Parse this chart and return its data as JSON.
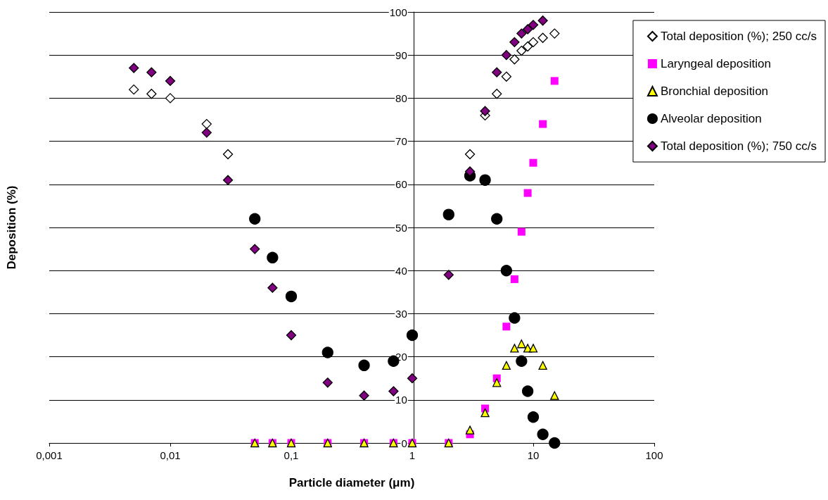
{
  "chart_data": {
    "type": "scatter",
    "xlabel": "Particle diameter (μm)",
    "ylabel": "Deposition (%)",
    "log": "x",
    "grid": "y",
    "legend": "top right",
    "xlim": [
      0.001,
      100
    ],
    "xticks": [
      {
        "value": 0.001,
        "label": "0,001"
      },
      {
        "value": 0.01,
        "label": "0,01"
      },
      {
        "value": 0.1,
        "label": "0,1"
      },
      1,
      10,
      100
    ],
    "ylim": [
      0,
      100
    ],
    "yticks": [
      0,
      10,
      20,
      30,
      40,
      50,
      60,
      70,
      80,
      90,
      100
    ],
    "series": [
      {
        "name": "Total deposition (%); 250 cc/s",
        "color": "#ffffff",
        "marker": "diamond",
        "x": [
          0.005,
          0.007,
          0.01,
          0.02,
          0.03,
          3,
          4,
          5,
          6,
          7,
          8,
          9,
          10,
          12,
          15
        ],
        "values": [
          82,
          81,
          80,
          74,
          67,
          67,
          76,
          81,
          85,
          89,
          91,
          92,
          93,
          94,
          95
        ]
      },
      {
        "name": "Laryngeal deposition",
        "color": "#ff00ff",
        "marker": "square",
        "x": [
          0.05,
          0.07,
          0.1,
          0.2,
          0.4,
          0.7,
          1,
          2,
          3,
          4,
          5,
          6,
          7,
          8,
          9,
          10,
          12,
          15
        ],
        "values": [
          0,
          0,
          0,
          0,
          0,
          0,
          0,
          0,
          2,
          8,
          15,
          27,
          38,
          49,
          58,
          65,
          74,
          84
        ]
      },
      {
        "name": "Bronchial deposition",
        "color": "#ffff00",
        "marker": "triangle",
        "x": [
          0.05,
          0.07,
          0.1,
          0.2,
          0.4,
          0.7,
          1,
          2,
          3,
          4,
          5,
          6,
          7,
          8,
          9,
          10,
          12,
          15
        ],
        "values": [
          0,
          0,
          0,
          0,
          0,
          0,
          0,
          0,
          3,
          7,
          14,
          18,
          22,
          23,
          22,
          22,
          18,
          11
        ]
      },
      {
        "name": "Alveolar deposition",
        "color": "#000000",
        "marker": "circle",
        "x": [
          0.05,
          0.07,
          0.1,
          0.2,
          0.4,
          0.7,
          1,
          2,
          3,
          4,
          5,
          6,
          7,
          8,
          9,
          10,
          12,
          15
        ],
        "values": [
          52,
          43,
          34,
          21,
          18,
          19,
          25,
          53,
          62,
          61,
          52,
          40,
          29,
          19,
          12,
          6,
          2,
          0
        ]
      },
      {
        "name": "Total deposition (%); 750 cc/s",
        "color": "#800080",
        "marker": "diamond",
        "x": [
          0.005,
          0.007,
          0.01,
          0.02,
          0.03,
          0.05,
          0.07,
          0.1,
          0.2,
          0.4,
          0.7,
          1,
          2,
          3,
          4,
          5,
          6,
          7,
          8,
          9,
          10,
          12
        ],
        "values": [
          87,
          86,
          84,
          72,
          61,
          45,
          36,
          25,
          14,
          11,
          12,
          15,
          39,
          63,
          77,
          86,
          90,
          93,
          95,
          96,
          97,
          98
        ]
      }
    ]
  }
}
